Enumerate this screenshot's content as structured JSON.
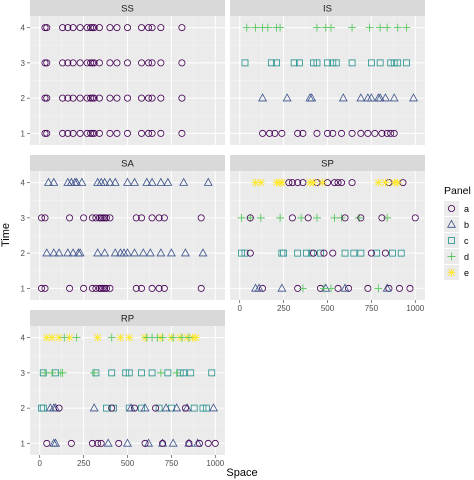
{
  "chart_data": {
    "type": "scatter",
    "xlabel": "Space",
    "ylabel": "Time",
    "xlim": [
      0,
      1000
    ],
    "ylim": [
      1,
      4
    ],
    "x_ticks": [
      "0",
      "250",
      "500",
      "750",
      "1000"
    ],
    "y_ticks": [
      "1",
      "2",
      "3",
      "4"
    ],
    "legend": {
      "title": "Panel",
      "position": "right",
      "entries": [
        {
          "label": "a",
          "shape": "circle",
          "color": "#440154"
        },
        {
          "label": "b",
          "shape": "triangle",
          "color": "#3B528B"
        },
        {
          "label": "c",
          "shape": "square",
          "color": "#21908C"
        },
        {
          "label": "d",
          "shape": "plus",
          "color": "#5DC863"
        },
        {
          "label": "e",
          "shape": "cross",
          "color": "#FDE725"
        }
      ]
    },
    "panels": [
      {
        "name": "SS",
        "points": [
          {
            "g": "a",
            "y": 4,
            "x": [
              30,
              40,
              130,
              160,
              190,
              230,
              270,
              290,
              300,
              310,
              340,
              400,
              440,
              500,
              580,
              620,
              640,
              690,
              810
            ]
          },
          {
            "g": "a",
            "y": 3,
            "x": [
              30,
              40,
              130,
              160,
              190,
              230,
              270,
              290,
              300,
              310,
              340,
              400,
              440,
              500,
              580,
              620,
              640,
              690,
              810
            ]
          },
          {
            "g": "a",
            "y": 2,
            "x": [
              30,
              40,
              130,
              160,
              190,
              230,
              270,
              290,
              300,
              310,
              340,
              400,
              440,
              500,
              580,
              620,
              640,
              690,
              810
            ]
          },
          {
            "g": "a",
            "y": 1,
            "x": [
              30,
              40,
              130,
              160,
              190,
              230,
              270,
              290,
              300,
              310,
              340,
              400,
              440,
              500,
              580,
              620,
              640,
              690,
              810
            ]
          }
        ]
      },
      {
        "name": "IS",
        "points": [
          {
            "g": "d",
            "y": 4,
            "x": [
              40,
              90,
              130,
              160,
              210,
              230,
              440,
              490,
              520,
              640,
              740,
              800,
              840,
              900,
              950
            ]
          },
          {
            "g": "c",
            "y": 3,
            "x": [
              30,
              180,
              210,
              310,
              340,
              420,
              440,
              500,
              530,
              550,
              640,
              750,
              800,
              860,
              880,
              900,
              950
            ]
          },
          {
            "g": "b",
            "y": 2,
            "x": [
              130,
              270,
              400,
              410,
              590,
              690,
              730,
              750,
              790,
              800,
              830,
              880,
              990
            ]
          },
          {
            "g": "a",
            "y": 1,
            "x": [
              130,
              170,
              200,
              240,
              330,
              360,
              440,
              500,
              530,
              580,
              640,
              690,
              730,
              770,
              810,
              840,
              860,
              880
            ]
          }
        ]
      },
      {
        "name": "SA",
        "points": [
          {
            "g": "b",
            "y": 4,
            "x": [
              50,
              80,
              160,
              180,
              200,
              210,
              240,
              330,
              350,
              370,
              400,
              430,
              500,
              540,
              610,
              640,
              690,
              730,
              820,
              960
            ]
          },
          {
            "g": "a",
            "y": 3,
            "x": [
              10,
              30,
              170,
              250,
              300,
              320,
              340,
              350,
              360,
              370,
              380,
              400,
              550,
              580,
              640,
              680,
              710,
              920
            ]
          },
          {
            "g": "b",
            "y": 2,
            "x": [
              40,
              80,
              110,
              160,
              190,
              220,
              230,
              330,
              370,
              430,
              460,
              480,
              500,
              540,
              590,
              630,
              690,
              750,
              830,
              930
            ]
          },
          {
            "g": "a",
            "y": 1,
            "x": [
              10,
              30,
              170,
              250,
              300,
              320,
              340,
              350,
              360,
              370,
              380,
              400,
              550,
              580,
              640,
              680,
              710,
              920
            ]
          }
        ]
      },
      {
        "name": "SP",
        "points": [
          {
            "g": "e",
            "y": 4,
            "x": [
              90,
              120,
              210,
              230,
              240
            ]
          },
          {
            "g": "a",
            "y": 4,
            "x": [
              280,
              300,
              330,
              360,
              440,
              500,
              540,
              560,
              580,
              640,
              850,
              930
            ]
          },
          {
            "g": "e",
            "y": 4,
            "x": [
              400,
              420,
              470,
              790,
              830,
              880,
              900
            ]
          },
          {
            "g": "d",
            "y": 3,
            "x": [
              10,
              60,
              120,
              230,
              350,
              440,
              540,
              580,
              680,
              840
            ]
          },
          {
            "g": "a",
            "y": 3,
            "x": [
              60,
              300,
              390,
              600,
              690,
              810,
              1000
            ]
          },
          {
            "g": "c",
            "y": 2,
            "x": [
              10,
              30,
              240,
              250,
              330,
              380,
              410,
              460,
              600,
              650,
              690,
              780,
              870,
              920
            ]
          },
          {
            "g": "a",
            "y": 2,
            "x": [
              60,
              420,
              480,
              530,
              750,
              830
            ]
          },
          {
            "g": "a",
            "y": 1,
            "x": [
              130,
              330,
              460,
              560,
              620,
              730,
              850,
              910,
              970
            ]
          },
          {
            "g": "b",
            "y": 1,
            "x": [
              90,
              110,
              240,
              490,
              600,
              840
            ]
          },
          {
            "g": "d",
            "y": 1,
            "x": [
              360,
              480,
              520,
              790
            ]
          }
        ]
      },
      {
        "name": "RP",
        "points": [
          {
            "g": "e",
            "y": 4,
            "x": [
              40,
              70,
              110,
              170,
              330,
              460,
              510,
              600,
              690,
              750,
              800,
              840,
              870,
              890
            ]
          },
          {
            "g": "d",
            "y": 4,
            "x": [
              140,
              210,
              410,
              610,
              640,
              670,
              700,
              760,
              810,
              850
            ]
          },
          {
            "g": "c",
            "y": 3,
            "x": [
              20,
              90,
              320,
              410,
              490,
              510,
              580,
              640,
              730,
              800,
              820,
              860,
              980
            ]
          },
          {
            "g": "d",
            "y": 3,
            "x": [
              30,
              70,
              120,
              130,
              310,
              690,
              780
            ]
          },
          {
            "g": "c",
            "y": 2,
            "x": [
              10,
              20,
              380,
              420,
              510,
              580,
              680,
              750,
              880,
              930,
              950
            ]
          },
          {
            "g": "b",
            "y": 2,
            "x": [
              60,
              80,
              90,
              310,
              520,
              600,
              720,
              780,
              840,
              990
            ]
          },
          {
            "g": "a",
            "y": 2,
            "x": [
              110,
              410,
              540,
              660,
              830
            ]
          },
          {
            "g": "b",
            "y": 1,
            "x": [
              80,
              90,
              390,
              500,
              620,
              700,
              760,
              850,
              900
            ]
          },
          {
            "g": "a",
            "y": 1,
            "x": [
              40,
              180,
              300,
              330,
              350,
              450,
              600,
              700,
              850,
              910,
              960,
              1000
            ]
          }
        ]
      }
    ]
  }
}
